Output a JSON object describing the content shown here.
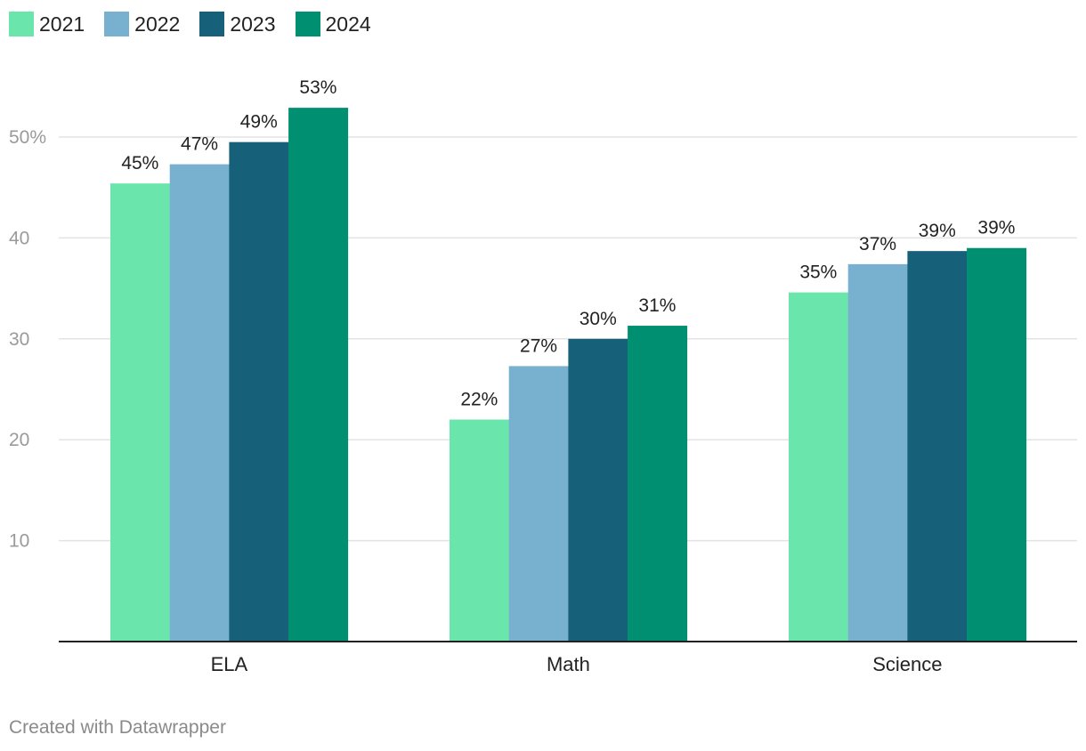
{
  "chart_data": {
    "type": "bar",
    "categories": [
      "ELA",
      "Math",
      "Science"
    ],
    "series": [
      {
        "name": "2021",
        "color": "#6ae5ab",
        "values": [
          45.4,
          22.0,
          34.6
        ],
        "labels": [
          "45%",
          "22%",
          "35%"
        ]
      },
      {
        "name": "2022",
        "color": "#77b1cf",
        "values": [
          47.3,
          27.3,
          37.4
        ],
        "labels": [
          "47%",
          "27%",
          "37%"
        ]
      },
      {
        "name": "2023",
        "color": "#17607a",
        "values": [
          49.5,
          30.0,
          38.7
        ],
        "labels": [
          "49%",
          "30%",
          "39%"
        ]
      },
      {
        "name": "2024",
        "color": "#008f71",
        "values": [
          52.9,
          31.3,
          39.0
        ],
        "labels": [
          "53%",
          "31%",
          "39%"
        ]
      }
    ],
    "y_ticks": [
      {
        "value": 10,
        "label": "10"
      },
      {
        "value": 20,
        "label": "20"
      },
      {
        "value": 30,
        "label": "30"
      },
      {
        "value": 40,
        "label": "40"
      },
      {
        "value": 50,
        "label": "50%"
      }
    ],
    "ylim": [
      0,
      55
    ],
    "grid": true,
    "legend_position": "top-left"
  },
  "footer": {
    "credit": "Created with Datawrapper"
  }
}
